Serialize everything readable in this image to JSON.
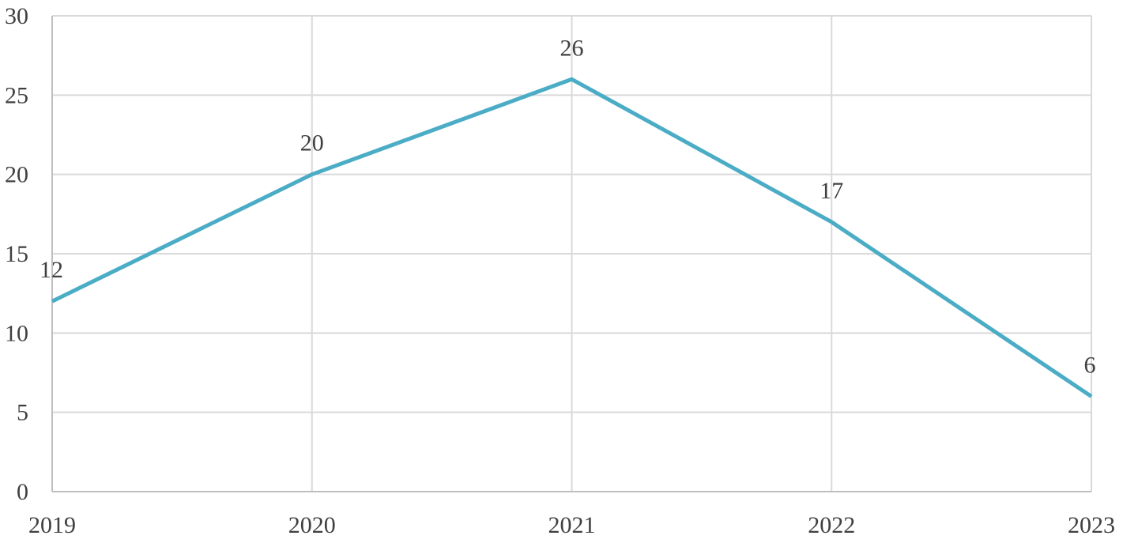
{
  "chart_data": {
    "type": "line",
    "title": "",
    "xlabel": "",
    "ylabel": "",
    "categories": [
      "2019",
      "2020",
      "2021",
      "2022",
      "2023"
    ],
    "series": [
      {
        "values": [
          12,
          20,
          26,
          17,
          6
        ]
      }
    ],
    "ylim": [
      0,
      30
    ],
    "yticks": [
      "0",
      "5",
      "10",
      "15",
      "20",
      "25",
      "30"
    ],
    "grid": true,
    "legend": "none",
    "data_labels": [
      "12",
      "20",
      "26",
      "17",
      "6"
    ],
    "colors": {
      "series": "#4bacc6",
      "grid": "#d9d9d9",
      "text": "#404040"
    }
  }
}
